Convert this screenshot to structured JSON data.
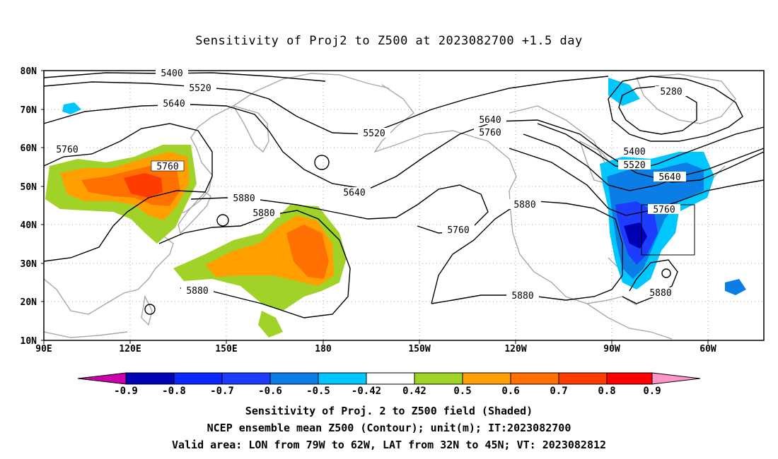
{
  "title": "Sensitivity of Proj2 to Z500 at 2023082700 +1.5 day",
  "lat_labels": [
    "80N",
    "70N",
    "60N",
    "50N",
    "40N",
    "30N",
    "20N",
    "10N"
  ],
  "lon_labels": [
    "90E",
    "120E",
    "150E",
    "180",
    "150W",
    "120W",
    "90W",
    "60W"
  ],
  "contour_labels": [
    "5400",
    "5520",
    "5640",
    "5760",
    "5280",
    "5520",
    "5640",
    "5760",
    "5760",
    "5880",
    "5640",
    "5760",
    "5880",
    "5400",
    "5520",
    "5640",
    "5760",
    "5880",
    "5880",
    "5880",
    "5880"
  ],
  "colorbar": {
    "ticks": [
      "-0.9",
      "-0.8",
      "-0.7",
      "-0.6",
      "-0.5",
      "-0.42",
      "0.42",
      "0.5",
      "0.6",
      "0.7",
      "0.8",
      "0.9"
    ],
    "colors": [
      "#cc00aa",
      "#0000b4",
      "#0a28ff",
      "#1e3cff",
      "#0a7ee6",
      "#00c8ff",
      "#ffffff",
      "#a0d228",
      "#ffa000",
      "#ff7000",
      "#ff3c00",
      "#ff0000",
      "#ff96c8"
    ]
  },
  "captions": [
    "Sensitivity of Proj. 2 to Z500 field (Shaded)",
    "NCEP ensemble mean Z500 (Contour); unit(m); IT:2023082700",
    "Valid area: LON from 79W to 62W, LAT from 32N to 45N; VT: 2023082812"
  ]
}
